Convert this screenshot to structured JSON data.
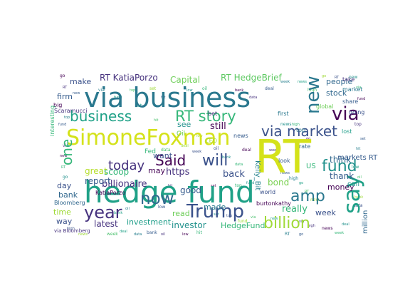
{
  "colors": {
    "background": "#ffffff",
    "palette": [
      "#440154",
      "#46327e",
      "#365c8d",
      "#277f8e",
      "#1fa187",
      "#4ac16d",
      "#a0da39",
      "#fde725"
    ]
  },
  "words": [
    {
      "text": "RT",
      "color": "#d4e21a"
    },
    {
      "text": "hedge fund",
      "color": "#1fa187"
    },
    {
      "text": "via business",
      "color": "#2a788e"
    },
    {
      "text": "SimoneFoxman",
      "color": "#d4e21a"
    },
    {
      "text": "business",
      "color": "#1fa187"
    },
    {
      "text": "RT story",
      "color": "#35b779"
    },
    {
      "text": "Trump",
      "color": "#3b528b"
    },
    {
      "text": "say",
      "color": "#1fa187"
    },
    {
      "text": "new",
      "color": "#2a788e"
    },
    {
      "text": "via",
      "color": "#440154"
    },
    {
      "text": "amp",
      "color": "#2a788e"
    },
    {
      "text": "year",
      "color": "#46327e"
    },
    {
      "text": "now",
      "color": "#31688e"
    },
    {
      "text": "Said",
      "color": "#440154"
    },
    {
      "text": "will",
      "color": "#3b528b"
    },
    {
      "text": "via market",
      "color": "#3b528b"
    },
    {
      "text": "fund",
      "color": "#21918c"
    },
    {
      "text": "billion",
      "color": "#a0da39"
    },
    {
      "text": "one",
      "color": "#35b779"
    },
    {
      "text": "today",
      "color": "#46327e"
    },
    {
      "text": "RT KatiaPorzo",
      "color": "#46327e"
    },
    {
      "text": "Capital",
      "color": "#6ece58"
    },
    {
      "text": "RT HedgeBrief",
      "color": "#5ec962"
    },
    {
      "text": "stock",
      "color": "#31688e"
    },
    {
      "text": "people",
      "color": "#31688e"
    },
    {
      "text": "make",
      "color": "#3b528b"
    },
    {
      "text": "firm",
      "color": "#365c8d"
    },
    {
      "text": "billionaire",
      "color": "#46327e"
    },
    {
      "text": "report",
      "color": "#365c8d"
    },
    {
      "text": "great",
      "color": "#b5de2b"
    },
    {
      "text": "scoop",
      "color": "#35b779"
    },
    {
      "text": "https",
      "color": "#46327e"
    },
    {
      "text": "may",
      "color": "#440154"
    },
    {
      "text": "want",
      "color": "#3b528b"
    },
    {
      "text": "see",
      "color": "#21918c"
    },
    {
      "text": "still",
      "color": "#440154"
    },
    {
      "text": "back",
      "color": "#3b528b"
    },
    {
      "text": "good",
      "color": "#365c8d"
    },
    {
      "text": "made",
      "color": "#2a788e"
    },
    {
      "text": "read",
      "color": "#6ece58"
    },
    {
      "text": "investor",
      "color": "#21918c"
    },
    {
      "text": "HedgeFund",
      "color": "#35b779"
    },
    {
      "text": "investment",
      "color": "#1f9e89"
    },
    {
      "text": "latest",
      "color": "#46327e"
    },
    {
      "text": "really",
      "color": "#35b779"
    },
    {
      "text": "bond",
      "color": "#7ad151"
    },
    {
      "text": "week",
      "color": "#3b528b"
    },
    {
      "text": "think",
      "color": "#31688e"
    },
    {
      "text": "thank",
      "color": "#365c8d"
    },
    {
      "text": "money",
      "color": "#440154"
    },
    {
      "text": "million",
      "color": "#31688e"
    },
    {
      "text": "markets RT",
      "color": "#365c8d"
    },
    {
      "text": "call",
      "color": "#21918c"
    },
    {
      "text": "Kelly_Bit",
      "color": "#26828e"
    },
    {
      "text": "Fed",
      "color": "#35b779"
    },
    {
      "text": "Oil",
      "color": "#6ece58"
    },
    {
      "text": "day",
      "color": "#3b528b"
    },
    {
      "text": "bank",
      "color": "#31688e"
    },
    {
      "text": "time",
      "color": "#a0da39"
    },
    {
      "text": "way",
      "color": "#3b528b"
    },
    {
      "text": "Bloomberg",
      "color": "#31688e"
    },
    {
      "text": "US",
      "color": "#35b779"
    },
    {
      "text": "first",
      "color": "#2a788e"
    },
    {
      "text": "look",
      "color": "#365c8d"
    },
    {
      "text": "burtonkathy",
      "color": "#440154"
    },
    {
      "text": "going",
      "color": "#3b528b"
    },
    {
      "text": "take",
      "color": "#46327e"
    },
    {
      "text": "share",
      "color": "#365c8d"
    },
    {
      "text": "market",
      "color": "#2a788e"
    },
    {
      "text": "Scaramucci",
      "color": "#46327e"
    },
    {
      "text": "big",
      "color": "#440154"
    },
    {
      "text": "interesting",
      "color": "#35b779"
    },
    {
      "text": "lost",
      "color": "#1f9e89"
    },
    {
      "text": "world",
      "color": "#3b528b"
    },
    {
      "text": "bet",
      "color": "#46327e"
    },
    {
      "text": "CEO",
      "color": "#a0da39"
    },
    {
      "text": "news",
      "color": "#365c8d"
    },
    {
      "text": "top",
      "color": "#2a788e"
    },
    {
      "text": "KatiaPorzo",
      "color": "#440154"
    },
    {
      "text": "rate",
      "color": "#31688e"
    },
    {
      "text": "via Bloomberg",
      "color": "#46327e"
    },
    {
      "text": "global",
      "color": "#6ece58"
    }
  ]
}
